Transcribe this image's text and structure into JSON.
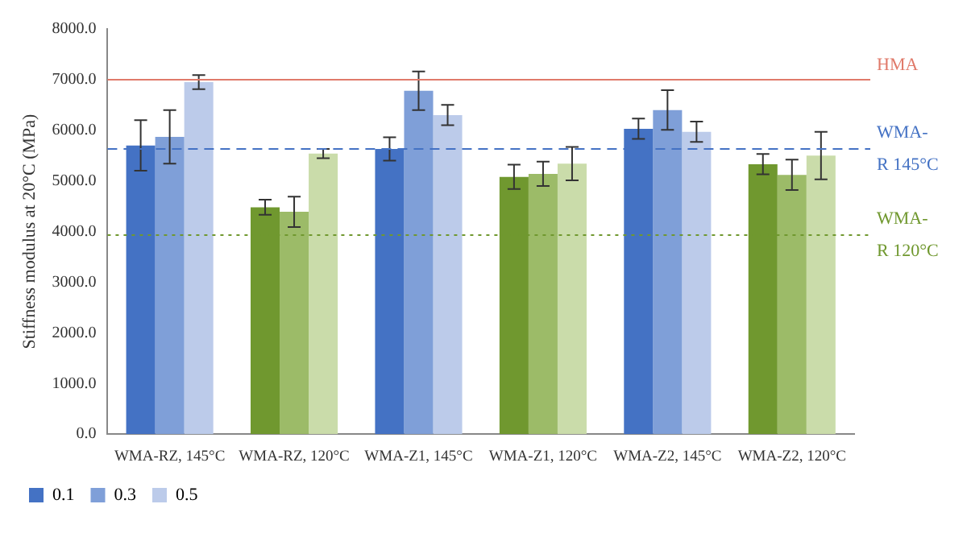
{
  "chart_data": {
    "type": "bar",
    "ylabel": "Stiffness modulus at 20°C (MPa)",
    "categories": [
      "WMA-RZ, 145°C",
      "WMA-RZ, 120°C",
      "WMA-Z1, 145°C",
      "WMA-Z1, 120°C",
      "WMA-Z2, 145°C",
      "WMA-Z2, 120°C"
    ],
    "series": [
      {
        "name": "0.1",
        "color": "#4472c4",
        "colors": [
          "#4472c4",
          "#70982f",
          "#4472c4",
          "#70982f",
          "#4472c4",
          "#70982f"
        ],
        "values": [
          5700,
          4480,
          5630,
          5080,
          6030,
          5330
        ],
        "errors": [
          500,
          150,
          230,
          240,
          200,
          200
        ]
      },
      {
        "name": "0.3",
        "color": "#7f9fd8",
        "colors": [
          "#7f9fd8",
          "#9cbb68",
          "#7f9fd8",
          "#9cbb68",
          "#7f9fd8",
          "#9cbb68"
        ],
        "values": [
          5870,
          4390,
          6780,
          5140,
          6400,
          5120
        ],
        "errors": [
          530,
          300,
          380,
          240,
          390,
          300
        ]
      },
      {
        "name": "0.5",
        "color": "#bccbea",
        "colors": [
          "#bccbea",
          "#cadcaa",
          "#bccbea",
          "#cadcaa",
          "#bccbea",
          "#cadcaa"
        ],
        "values": [
          6950,
          5540,
          6300,
          5340,
          5970,
          5500
        ],
        "errors": [
          140,
          90,
          200,
          330,
          200,
          470
        ]
      }
    ],
    "ylim": [
      0,
      8000
    ],
    "yticks": [
      {
        "value": 0,
        "label": "0.0"
      },
      {
        "value": 1000,
        "label": "1000.0"
      },
      {
        "value": 2000,
        "label": "2000.0"
      },
      {
        "value": 3000,
        "label": "3000.0"
      },
      {
        "value": 4000,
        "label": "4000.0"
      },
      {
        "value": 5000,
        "label": "5000.0"
      },
      {
        "value": 6000,
        "label": "6000.0"
      },
      {
        "value": 7000,
        "label": "7000.0"
      },
      {
        "value": 8000,
        "label": "8000.0"
      }
    ],
    "ref_lines": [
      {
        "axis": "y",
        "value": 7000,
        "label": "HMA",
        "color": "#e07a6a",
        "line_style": "solid"
      },
      {
        "axis": "y",
        "value": 5630,
        "label": "WMA-R 145°C",
        "color": "#4472c4",
        "line_style": "dashed"
      },
      {
        "axis": "y",
        "value": 3930,
        "label": "WMA-R 120°C",
        "color": "#70982f",
        "line_style": "dotted"
      }
    ],
    "grid": false,
    "legend": "bottom"
  }
}
